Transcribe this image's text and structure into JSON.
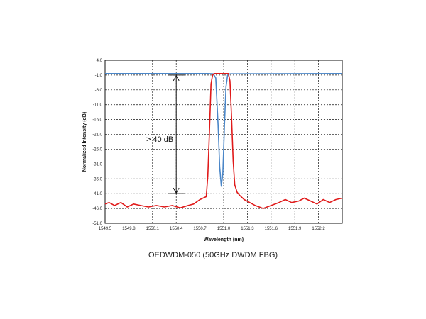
{
  "chart_data": {
    "type": "line",
    "title": "",
    "caption": "OEDWDM-050 (50GHz DWDM FBG)",
    "xlabel": "Wavelength (nm)",
    "ylabel": "Normalized Intensity (dB)",
    "xlim": [
      1549.5,
      1552.5
    ],
    "ylim": [
      -51.0,
      4.0
    ],
    "x_ticks": [
      "1549.5",
      "1549.8",
      "1550.1",
      "1550.4",
      "1550.7",
      "1551.0",
      "1551.3",
      "1551.6",
      "1551.9",
      "1552.2"
    ],
    "y_ticks": [
      "4.0",
      "-1.0",
      "-6.0",
      "-11.0",
      "-16.0",
      "-21.0",
      "-26.0",
      "-31.0",
      "-36.0",
      "-41.0",
      "-46.0",
      "-51.0"
    ],
    "grid": true,
    "annotation": "> 40 dB",
    "annotation_range": [
      -1.0,
      -41.0
    ],
    "annotation_x": 1550.4,
    "colors": {
      "transmission": "#4a86c8",
      "reflection": "#e01a1a"
    },
    "series": [
      {
        "key": "transmission",
        "x": [
          1549.5,
          1550.8,
          1550.87,
          1550.9,
          1550.93,
          1550.95,
          1550.97,
          1550.99,
          1551.01,
          1551.03,
          1551.05,
          1551.08,
          1552.5
        ],
        "y": [
          -0.5,
          -0.5,
          -0.6,
          -2.0,
          -18.0,
          -32.0,
          -38.5,
          -34.0,
          -18.0,
          -5.0,
          -1.0,
          -0.6,
          -0.5
        ]
      },
      {
        "key": "reflection",
        "x": [
          1549.5,
          1549.55,
          1549.62,
          1549.7,
          1549.78,
          1549.86,
          1549.95,
          1550.05,
          1550.15,
          1550.25,
          1550.35,
          1550.45,
          1550.55,
          1550.62,
          1550.7,
          1550.78,
          1550.8,
          1550.82,
          1550.84,
          1550.86,
          1550.88,
          1550.92,
          1551.0,
          1551.06,
          1551.08,
          1551.1,
          1551.12,
          1551.14,
          1551.17,
          1551.2,
          1551.26,
          1551.33,
          1551.4,
          1551.5,
          1551.6,
          1551.7,
          1551.78,
          1551.86,
          1551.95,
          1552.02,
          1552.1,
          1552.18,
          1552.26,
          1552.34,
          1552.42,
          1552.5
        ],
        "y": [
          -44.5,
          -44.0,
          -45.0,
          -44.0,
          -45.5,
          -44.5,
          -45.0,
          -45.5,
          -45.0,
          -45.5,
          -45.0,
          -45.8,
          -45.0,
          -44.5,
          -43.0,
          -42.0,
          -35.0,
          -20.0,
          -4.0,
          -1.0,
          -0.5,
          -0.5,
          -0.5,
          -0.5,
          -3.0,
          -15.0,
          -30.0,
          -38.0,
          -40.5,
          -41.5,
          -43.0,
          -44.0,
          -45.0,
          -46.0,
          -45.0,
          -44.0,
          -43.0,
          -44.0,
          -43.5,
          -42.5,
          -43.5,
          -44.5,
          -43.0,
          -44.0,
          -43.0,
          -42.5
        ]
      }
    ]
  }
}
